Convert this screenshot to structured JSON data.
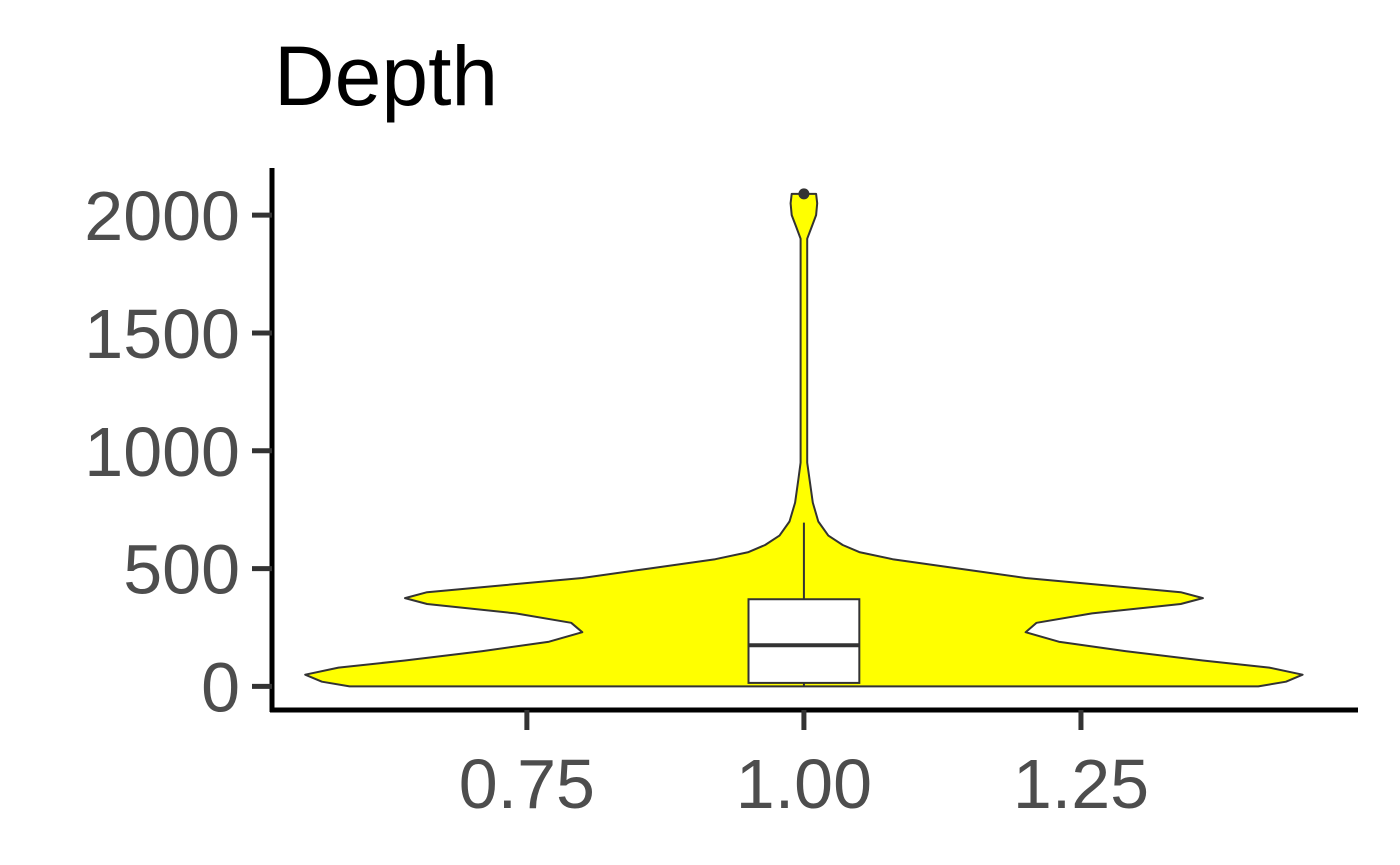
{
  "chart_data": {
    "type": "violin",
    "title": "Depth",
    "xlabel": "",
    "ylabel": "",
    "x_ticks": [
      "0.75",
      "1.00",
      "1.25"
    ],
    "x_tick_values": [
      0.75,
      1.0,
      1.25
    ],
    "y_ticks": [
      "0",
      "500",
      "1000",
      "1500",
      "2000"
    ],
    "y_tick_values": [
      0,
      500,
      1000,
      1500,
      2000
    ],
    "xlim": [
      0.52,
      1.5
    ],
    "ylim": [
      -100,
      2200
    ],
    "grid": false,
    "legend": "none",
    "colors": {
      "violin_fill": "#ffff00",
      "outline": "#333333",
      "box_fill": "#ffffff",
      "axis": "#000000"
    },
    "violin": {
      "x_center": 1.0,
      "max_half_width": 0.45,
      "density_profile": [
        {
          "y": 0,
          "half_width": 0.41
        },
        {
          "y": 20,
          "half_width": 0.435
        },
        {
          "y": 50,
          "half_width": 0.45
        },
        {
          "y": 80,
          "half_width": 0.42
        },
        {
          "y": 110,
          "half_width": 0.36
        },
        {
          "y": 150,
          "half_width": 0.29
        },
        {
          "y": 190,
          "half_width": 0.23
        },
        {
          "y": 230,
          "half_width": 0.2
        },
        {
          "y": 270,
          "half_width": 0.21
        },
        {
          "y": 310,
          "half_width": 0.26
        },
        {
          "y": 350,
          "half_width": 0.34
        },
        {
          "y": 375,
          "half_width": 0.36
        },
        {
          "y": 400,
          "half_width": 0.34
        },
        {
          "y": 430,
          "half_width": 0.27
        },
        {
          "y": 460,
          "half_width": 0.2
        },
        {
          "y": 500,
          "half_width": 0.14
        },
        {
          "y": 540,
          "half_width": 0.08
        },
        {
          "y": 570,
          "half_width": 0.05
        },
        {
          "y": 600,
          "half_width": 0.035
        },
        {
          "y": 640,
          "half_width": 0.022
        },
        {
          "y": 700,
          "half_width": 0.013
        },
        {
          "y": 780,
          "half_width": 0.008
        },
        {
          "y": 880,
          "half_width": 0.005
        },
        {
          "y": 950,
          "half_width": 0.003
        },
        {
          "y": 1100,
          "half_width": 0.003
        },
        {
          "y": 1900,
          "half_width": 0.003
        },
        {
          "y": 1950,
          "half_width": 0.007
        },
        {
          "y": 2000,
          "half_width": 0.011
        },
        {
          "y": 2050,
          "half_width": 0.012
        },
        {
          "y": 2090,
          "half_width": 0.011
        }
      ]
    },
    "boxplot": {
      "x_center": 1.0,
      "half_width": 0.05,
      "q1": 15,
      "median": 175,
      "q3": 370,
      "whisker_low": 0,
      "whisker_high": 695,
      "outliers": [
        2090
      ]
    }
  }
}
